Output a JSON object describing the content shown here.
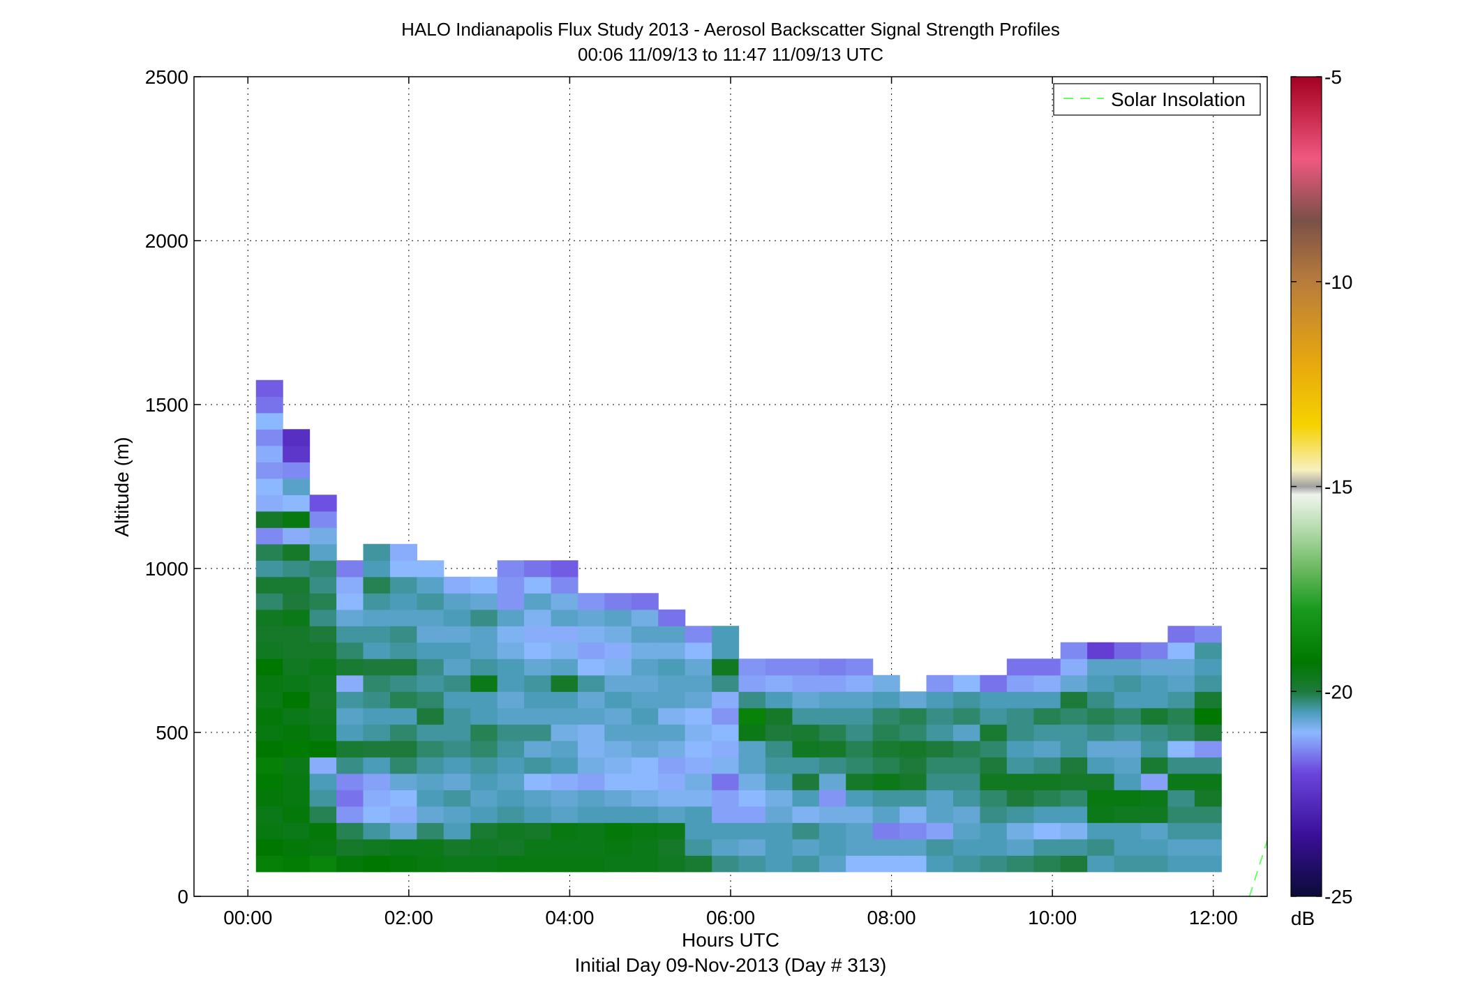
{
  "chart_data": {
    "type": "heatmap",
    "title": "HALO Indianapolis Flux Study 2013 - Aerosol Backscatter Signal Strength Profiles",
    "subtitle": "00:06 11/09/13 to 11:47 11/09/13  UTC",
    "xlabel": "Hours UTC",
    "xlabel2": "Initial Day 09-Nov-2013 (Day # 313)",
    "ylabel": "Altitude (m)",
    "xlim": [
      -0.67,
      12.67
    ],
    "ylim": [
      0,
      2500
    ],
    "x_ticks": [
      0,
      2,
      4,
      6,
      8,
      10,
      12
    ],
    "x_tick_labels": [
      "00:00",
      "02:00",
      "04:00",
      "06:00",
      "08:00",
      "10:00",
      "12:00"
    ],
    "y_ticks": [
      0,
      500,
      1000,
      1500,
      2000,
      2500
    ],
    "y_tick_labels": [
      "0",
      "500",
      "1000",
      "1500",
      "2000",
      "2500"
    ],
    "grid": true,
    "legend": {
      "placement": "top-right",
      "entries": [
        {
          "name": "Solar Insolation",
          "color": "#66ff66",
          "style": "dashed"
        }
      ]
    },
    "colorbar": {
      "label": "dB",
      "range": [
        -25,
        -5
      ],
      "ticks": [
        -25,
        -20,
        -15,
        -10,
        -5
      ],
      "tick_labels": [
        "-25",
        "-20",
        "-15",
        "-10",
        "-5"
      ],
      "stops": [
        {
          "v": -25,
          "c": "#0b0b38"
        },
        {
          "v": -23.5,
          "c": "#3a0f9a"
        },
        {
          "v": -22,
          "c": "#6a45dc"
        },
        {
          "v": -21,
          "c": "#8cb8ff"
        },
        {
          "v": -20.5,
          "c": "#4a9cb8"
        },
        {
          "v": -20,
          "c": "#1d7a3a"
        },
        {
          "v": -19.3,
          "c": "#007800"
        },
        {
          "v": -18,
          "c": "#199a1e"
        },
        {
          "v": -17,
          "c": "#6cb862"
        },
        {
          "v": -16,
          "c": "#b8dcb0"
        },
        {
          "v": -15.2,
          "c": "#eef4ec"
        },
        {
          "v": -15,
          "c": "#a0a0a0"
        },
        {
          "v": -14.6,
          "c": "#f8f0c0"
        },
        {
          "v": -13.5,
          "c": "#f5d200"
        },
        {
          "v": -12,
          "c": "#e8a80e"
        },
        {
          "v": -10,
          "c": "#b87c3c"
        },
        {
          "v": -8.5,
          "c": "#7a5048"
        },
        {
          "v": -7,
          "c": "#f05880"
        },
        {
          "v": -5,
          "c": "#a50020"
        }
      ]
    },
    "solar_insolation_line": {
      "x": [
        12.45,
        12.67
      ],
      "y": [
        0,
        170
      ]
    },
    "cell_height_m": 50,
    "altitude_start_m": 75,
    "cell_width_h": 0.333,
    "columns": [
      {
        "x": 0.1,
        "values": [
          -19.0,
          -19.3,
          -19.5,
          -19.6,
          -19.4,
          -19.2,
          -19.0,
          -19.3,
          -19.5,
          -19.4,
          -19.6,
          -19.5,
          -19.3,
          -19.7,
          -19.8,
          -19.7,
          -20.2,
          -19.9,
          -20.4,
          -20.1,
          -21.4,
          -19.8,
          -21.1,
          -21.0,
          -21.3,
          -21.1,
          -21.4,
          -21.0,
          -21.6,
          -21.8
        ]
      },
      {
        "x": 0.433,
        "values": [
          -19.1,
          -19.4,
          -19.6,
          -19.4,
          -19.5,
          -19.5,
          -19.6,
          -19.2,
          -19.4,
          -19.6,
          -19.3,
          -19.6,
          -19.7,
          -19.8,
          -19.8,
          -19.6,
          -20.0,
          -19.9,
          -20.3,
          -19.8,
          -21.1,
          -19.5,
          -21.0,
          -20.6,
          -21.4,
          -22.4,
          -22.6
        ]
      },
      {
        "x": 0.767,
        "values": [
          -18.8,
          -19.5,
          -19.4,
          -20.1,
          -20.4,
          -20.5,
          -21.1,
          -19.3,
          -19.6,
          -19.7,
          -19.8,
          -19.7,
          -19.6,
          -19.8,
          -20.0,
          -20.3,
          -20.1,
          -20.3,
          -20.2,
          -20.6,
          -20.8,
          -21.4,
          -21.9
        ]
      },
      {
        "x": 1.1,
        "values": [
          -19.4,
          -19.8,
          -20.1,
          -21.3,
          -21.6,
          -21.4,
          -20.3,
          -19.9,
          -20.5,
          -20.6,
          -20.4,
          -21.1,
          -19.9,
          -20.2,
          -20.4,
          -20.7,
          -21.0,
          -21.1,
          -21.5
        ]
      },
      {
        "x": 1.433,
        "values": [
          -19.3,
          -19.7,
          -20.4,
          -21.0,
          -21.1,
          -21.2,
          -20.5,
          -20.0,
          -20.4,
          -20.5,
          -20.3,
          -20.2,
          -20.0,
          -20.5,
          -20.4,
          -20.6,
          -20.4,
          -20.1,
          -20.5,
          -20.4
        ]
      },
      {
        "x": 1.767,
        "values": [
          -19.4,
          -19.6,
          -20.7,
          -21.1,
          -21.0,
          -20.7,
          -20.2,
          -20.0,
          -20.2,
          -20.5,
          -20.1,
          -20.3,
          -20.0,
          -20.4,
          -20.3,
          -20.6,
          -20.5,
          -20.4,
          -21.0,
          -21.1
        ]
      },
      {
        "x": 2.1,
        "values": [
          -19.5,
          -19.6,
          -20.2,
          -20.7,
          -20.5,
          -20.6,
          -20.4,
          -20.2,
          -20.4,
          -20.0,
          -20.2,
          -20.4,
          -20.3,
          -20.5,
          -20.7,
          -20.6,
          -20.4,
          -20.6,
          -21.0
        ]
      },
      {
        "x": 2.433,
        "values": [
          -19.6,
          -19.8,
          -20.5,
          -20.6,
          -20.4,
          -20.7,
          -20.5,
          -20.3,
          -20.4,
          -20.4,
          -20.5,
          -20.3,
          -20.6,
          -20.5,
          -20.7,
          -20.5,
          -20.6,
          -21.1
        ]
      },
      {
        "x": 2.767,
        "values": [
          -19.6,
          -19.7,
          -19.9,
          -20.5,
          -20.6,
          -20.5,
          -20.4,
          -20.2,
          -20.1,
          -20.5,
          -20.5,
          -19.6,
          -20.4,
          -20.6,
          -20.6,
          -20.3,
          -20.7,
          -21.0
        ]
      },
      {
        "x": 3.1,
        "values": [
          -19.5,
          -19.8,
          -19.7,
          -20.4,
          -20.5,
          -20.6,
          -20.5,
          -20.4,
          -20.3,
          -20.6,
          -20.7,
          -20.5,
          -20.5,
          -20.8,
          -20.9,
          -20.6,
          -21.3,
          -21.3,
          -21.4
        ]
      },
      {
        "x": 3.433,
        "values": [
          -19.5,
          -19.6,
          -19.8,
          -20.5,
          -20.6,
          -21.0,
          -20.4,
          -20.7,
          -20.3,
          -20.6,
          -20.5,
          -20.4,
          -20.7,
          -21.0,
          -21.1,
          -20.9,
          -20.6,
          -21.0,
          -21.6
        ]
      },
      {
        "x": 3.767,
        "values": [
          -19.5,
          -19.6,
          -19.5,
          -20.6,
          -20.7,
          -21.1,
          -20.5,
          -20.6,
          -20.8,
          -20.6,
          -20.5,
          -19.8,
          -20.6,
          -20.9,
          -21.1,
          -20.6,
          -20.8,
          -21.4,
          -21.8
        ]
      },
      {
        "x": 4.1,
        "values": [
          -19.5,
          -19.6,
          -19.6,
          -20.5,
          -20.6,
          -21.2,
          -20.8,
          -20.9,
          -20.9,
          -20.6,
          -20.7,
          -20.4,
          -21.0,
          -21.2,
          -20.9,
          -20.7,
          -21.3
        ]
      },
      {
        "x": 4.433,
        "values": [
          -19.6,
          -19.5,
          -19.4,
          -20.5,
          -20.7,
          -21.0,
          -20.9,
          -20.8,
          -20.6,
          -20.7,
          -20.5,
          -20.7,
          -20.9,
          -21.1,
          -20.8,
          -20.6,
          -21.5
        ]
      },
      {
        "x": 4.767,
        "values": [
          -19.6,
          -19.6,
          -19.5,
          -20.5,
          -20.8,
          -21.0,
          -21.0,
          -20.7,
          -20.6,
          -20.5,
          -20.6,
          -20.7,
          -20.6,
          -20.8,
          -20.6,
          -20.8,
          -21.6
        ]
      },
      {
        "x": 5.1,
        "values": [
          -19.7,
          -19.8,
          -19.6,
          -20.6,
          -20.9,
          -21.1,
          -21.2,
          -20.8,
          -20.6,
          -20.9,
          -20.6,
          -20.6,
          -20.5,
          -20.8,
          -20.6,
          -21.6
        ]
      },
      {
        "x": 5.433,
        "values": [
          -19.9,
          -20.4,
          -20.5,
          -20.5,
          -20.9,
          -20.8,
          -21.1,
          -21.0,
          -20.9,
          -21.0,
          -20.7,
          -20.6,
          -20.7,
          -21.0,
          -21.4
        ]
      },
      {
        "x": 5.767,
        "values": [
          -20.3,
          -20.6,
          -20.5,
          -21.2,
          -21.2,
          -21.6,
          -20.9,
          -21.1,
          -21.0,
          -21.3,
          -21.1,
          -20.3,
          -19.7,
          -20.5,
          -20.5
        ]
      },
      {
        "x": 6.1,
        "values": [
          -20.4,
          -20.7,
          -20.5,
          -21.2,
          -21.0,
          -20.8,
          -20.6,
          -20.6,
          -19.6,
          -18.9,
          -20.3,
          -21.2,
          -21.3
        ]
      },
      {
        "x": 6.433,
        "values": [
          -20.5,
          -20.5,
          -20.5,
          -20.7,
          -20.8,
          -20.5,
          -20.4,
          -20.3,
          -20.0,
          -19.8,
          -20.5,
          -21.1,
          -21.4
        ]
      },
      {
        "x": 6.767,
        "values": [
          -20.4,
          -20.6,
          -20.3,
          -20.9,
          -20.5,
          -20.0,
          -20.4,
          -19.7,
          -19.9,
          -20.4,
          -20.7,
          -21.2,
          -21.4
        ]
      },
      {
        "x": 7.1,
        "values": [
          -20.6,
          -20.5,
          -20.5,
          -20.8,
          -21.3,
          -20.7,
          -20.3,
          -19.8,
          -20.1,
          -20.4,
          -20.6,
          -21.2,
          -21.5
        ]
      },
      {
        "x": 7.433,
        "values": [
          -21.0,
          -20.6,
          -20.6,
          -20.8,
          -20.5,
          -19.8,
          -20.2,
          -20.1,
          -20.3,
          -20.4,
          -20.6,
          -21.1,
          -21.4
        ]
      },
      {
        "x": 7.767,
        "values": [
          -21.0,
          -20.6,
          -21.5,
          -20.6,
          -20.4,
          -19.6,
          -20.1,
          -19.9,
          -20.1,
          -20.2,
          -20.5,
          -20.8
        ]
      },
      {
        "x": 8.1,
        "values": [
          -21.0,
          -20.6,
          -21.4,
          -20.9,
          -20.4,
          -19.8,
          -20.0,
          -19.8,
          -20.2,
          -20.1,
          -20.7
        ]
      },
      {
        "x": 8.433,
        "values": [
          -20.5,
          -20.4,
          -21.2,
          -20.6,
          -20.6,
          -20.3,
          -20.2,
          -20.0,
          -20.4,
          -20.3,
          -20.5,
          -21.3
        ]
      },
      {
        "x": 8.767,
        "values": [
          -20.4,
          -20.5,
          -20.6,
          -20.7,
          -20.4,
          -20.3,
          -20.2,
          -20.1,
          -20.6,
          -20.2,
          -20.4,
          -21.0
        ]
      },
      {
        "x": 9.1,
        "values": [
          -20.3,
          -20.5,
          -20.5,
          -20.3,
          -20.2,
          -19.7,
          -20.0,
          -20.2,
          -19.9,
          -20.4,
          -20.5,
          -21.6
        ]
      },
      {
        "x": 9.433,
        "values": [
          -20.2,
          -20.6,
          -20.8,
          -20.4,
          -20.0,
          -19.7,
          -20.4,
          -20.5,
          -20.3,
          -20.3,
          -20.5,
          -21.2,
          -21.6
        ]
      },
      {
        "x": 9.767,
        "values": [
          -20.1,
          -20.4,
          -21.0,
          -20.5,
          -20.1,
          -19.7,
          -20.3,
          -20.6,
          -20.4,
          -20.1,
          -20.5,
          -21.1,
          -21.6
        ]
      },
      {
        "x": 10.1,
        "values": [
          -20.0,
          -20.4,
          -20.9,
          -20.5,
          -20.2,
          -19.8,
          -20.0,
          -20.4,
          -20.4,
          -20.2,
          -20.0,
          -20.7,
          -21.1,
          -21.4
        ]
      },
      {
        "x": 10.433,
        "values": [
          -20.5,
          -20.3,
          -20.5,
          -19.6,
          -19.5,
          -19.8,
          -20.5,
          -20.7,
          -20.3,
          -20.1,
          -20.3,
          -20.5,
          -20.6,
          -22.2
        ]
      },
      {
        "x": 10.767,
        "values": [
          -20.4,
          -20.5,
          -20.5,
          -19.7,
          -19.5,
          -20.5,
          -20.6,
          -20.7,
          -20.4,
          -20.2,
          -20.5,
          -20.4,
          -20.6,
          -21.7
        ]
      },
      {
        "x": 11.1,
        "values": [
          -20.4,
          -20.5,
          -20.6,
          -19.7,
          -19.6,
          -21.2,
          -19.9,
          -20.4,
          -20.3,
          -19.9,
          -20.5,
          -20.5,
          -20.7,
          -21.5
        ]
      },
      {
        "x": 11.433,
        "values": [
          -20.5,
          -20.6,
          -20.4,
          -20.2,
          -20.3,
          -19.6,
          -20.3,
          -21.0,
          -20.2,
          -20.1,
          -20.4,
          -20.6,
          -20.7,
          -21.0,
          -21.6
        ]
      },
      {
        "x": 11.767,
        "values": [
          -20.5,
          -20.6,
          -20.4,
          -20.2,
          -19.8,
          -19.6,
          -20.3,
          -21.3,
          -20.0,
          -19.3,
          -19.9,
          -20.4,
          -20.5,
          -20.4,
          -21.4
        ]
      }
    ]
  }
}
